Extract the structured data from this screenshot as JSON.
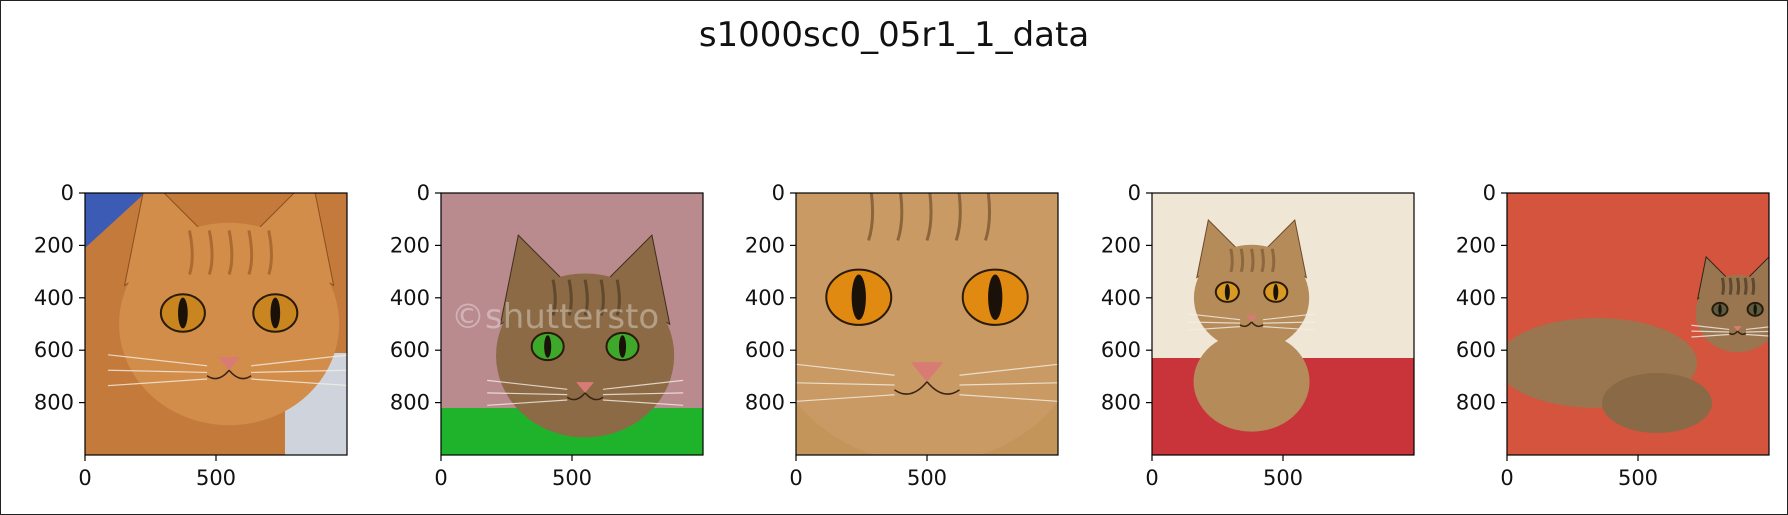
{
  "chart_data": {
    "type": "image_grid",
    "title": "s1000sc0_05r1_1_data",
    "image_size": [
      1000,
      1000
    ],
    "xticks": [
      0,
      500
    ],
    "yticks": [
      0,
      200,
      400,
      600,
      800
    ],
    "xlim": [
      0,
      1000
    ],
    "ylim": [
      1000,
      0
    ],
    "panels": [
      {
        "subject": "orange tabby cat close-up",
        "palette": {
          "bg": "#c47a3a",
          "fur": "#d28d4a",
          "dark": "#8a4e1e",
          "eye": "#c98620",
          "accent": "#3b5bb5"
        },
        "watermark": ""
      },
      {
        "subject": "ticked cat lying on green blanket",
        "palette": {
          "bg": "#b98a8e",
          "fur": "#8b6a45",
          "dark": "#3f2d1b",
          "eye": "#3ea82a",
          "accent": "#1fb32b"
        },
        "watermark": "©shuttersto"
      },
      {
        "subject": "tabby cat face close-up",
        "palette": {
          "bg": "#c3955b",
          "fur": "#c99a63",
          "dark": "#5a3b1c",
          "eye": "#e08a12",
          "accent": "#9d5b3a"
        },
        "watermark": ""
      },
      {
        "subject": "abyssinian cat on red cushion",
        "palette": {
          "bg": "#efe6d6",
          "fur": "#b58b5a",
          "dark": "#6a4a2a",
          "eye": "#d89a22",
          "accent": "#c9333a"
        },
        "watermark": ""
      },
      {
        "subject": "two kittens on red blanket",
        "palette": {
          "bg": "#d4543e",
          "fur": "#9a7650",
          "dark": "#2f2418",
          "eye": "#5c5c40",
          "accent": "#c44b35"
        },
        "watermark": ""
      }
    ]
  }
}
